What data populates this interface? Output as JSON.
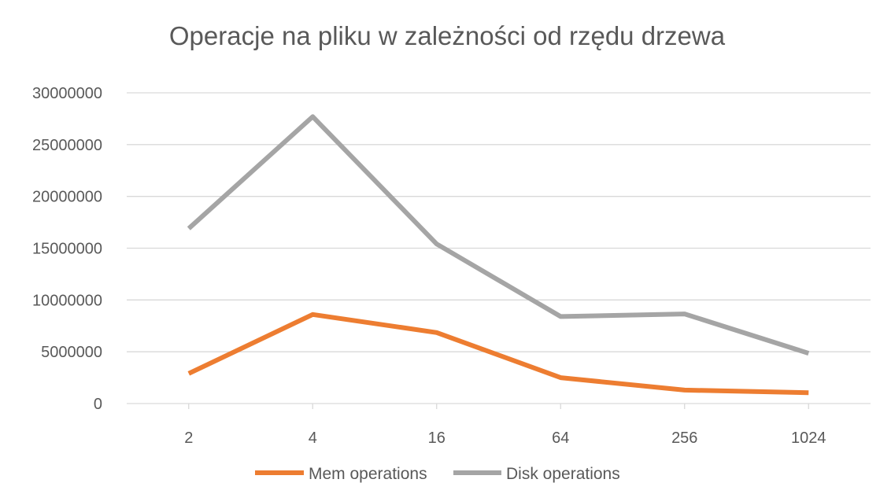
{
  "chart_data": {
    "type": "line",
    "title": "Operacje na pliku w zależności od rzędu drzewa",
    "categories": [
      "2",
      "4",
      "16",
      "64",
      "256",
      "1024"
    ],
    "ylim": [
      0,
      30000000
    ],
    "yticks": [
      "0",
      "5000000",
      "10000000",
      "15000000",
      "20000000",
      "25000000",
      "30000000"
    ],
    "grid": true,
    "legend_position": "bottom",
    "series": [
      {
        "name": "Mem operations",
        "color": "#ED7D31",
        "values": [
          2900000,
          8600000,
          6850000,
          2500000,
          1300000,
          1050000
        ]
      },
      {
        "name": "Disk operations",
        "color": "#A5A5A5",
        "values": [
          16900000,
          27700000,
          15400000,
          8400000,
          8650000,
          4850000
        ]
      }
    ]
  }
}
